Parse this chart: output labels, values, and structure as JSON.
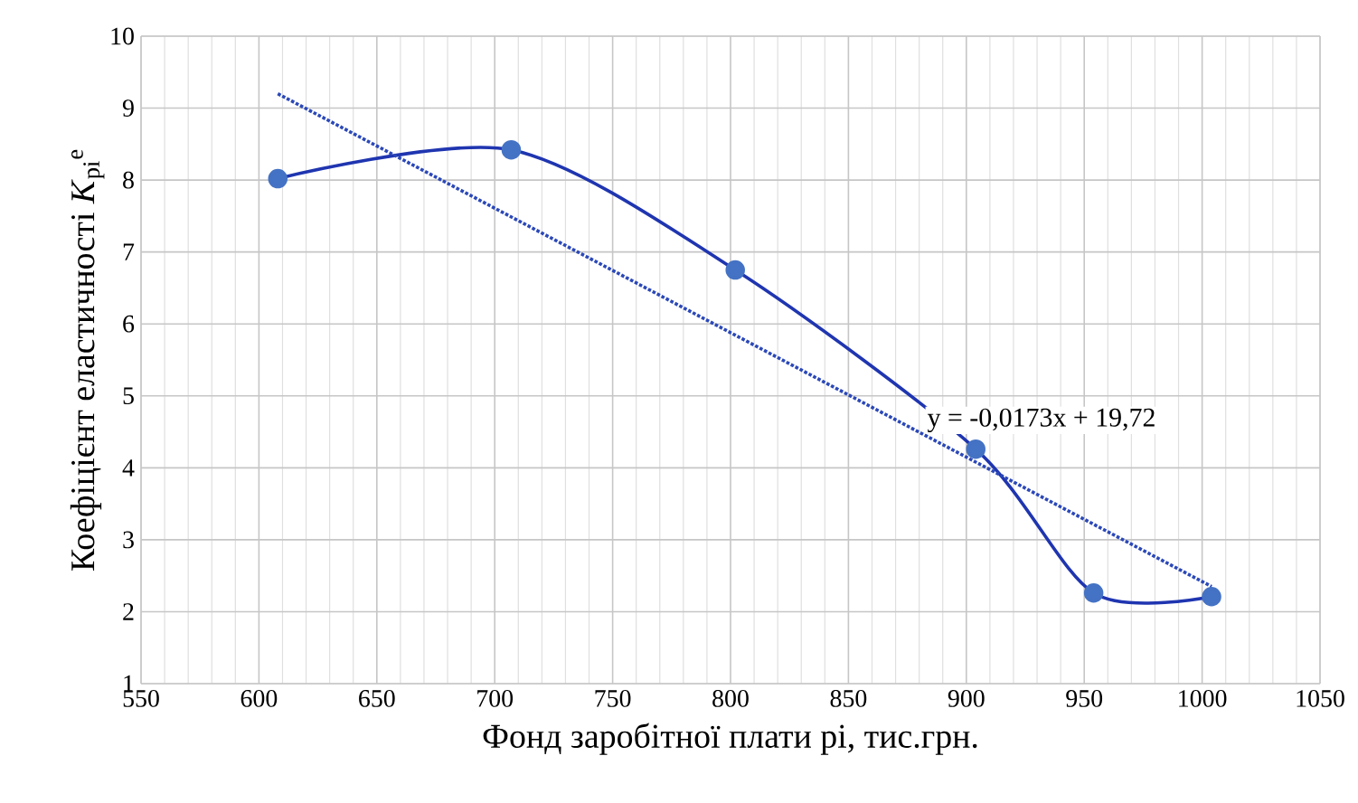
{
  "chart_data": {
    "type": "line",
    "xlabel": "Фонд заробітної плати pi, тис.грн.",
    "ylabel": "Коефіцієнт еластичності *K*$_{pi}$$^{e}$",
    "xlim": [
      550,
      1050
    ],
    "xticks": [
      550,
      600,
      650,
      700,
      750,
      800,
      850,
      900,
      950,
      1000,
      1050
    ],
    "ylim": [
      1,
      10
    ],
    "yticks": [
      1,
      2,
      3,
      4,
      5,
      6,
      7,
      8,
      9,
      10
    ],
    "grid": true,
    "series": [
      {
        "color": "#1f35b0",
        "marker": "circle",
        "line_style": "solid",
        "x": [
          608,
          707,
          802,
          904,
          954,
          1004
        ],
        "values": [
          8.02,
          8.42,
          6.75,
          4.26,
          2.26,
          2.21
        ]
      },
      {
        "color": "#2b48b8",
        "marker": "none",
        "line_style": "dotted",
        "x": [
          608,
          1004
        ],
        "values": [
          9.2,
          2.35
        ]
      }
    ],
    "annotations": [
      "y = -0,0173x + 19,72"
    ]
  }
}
